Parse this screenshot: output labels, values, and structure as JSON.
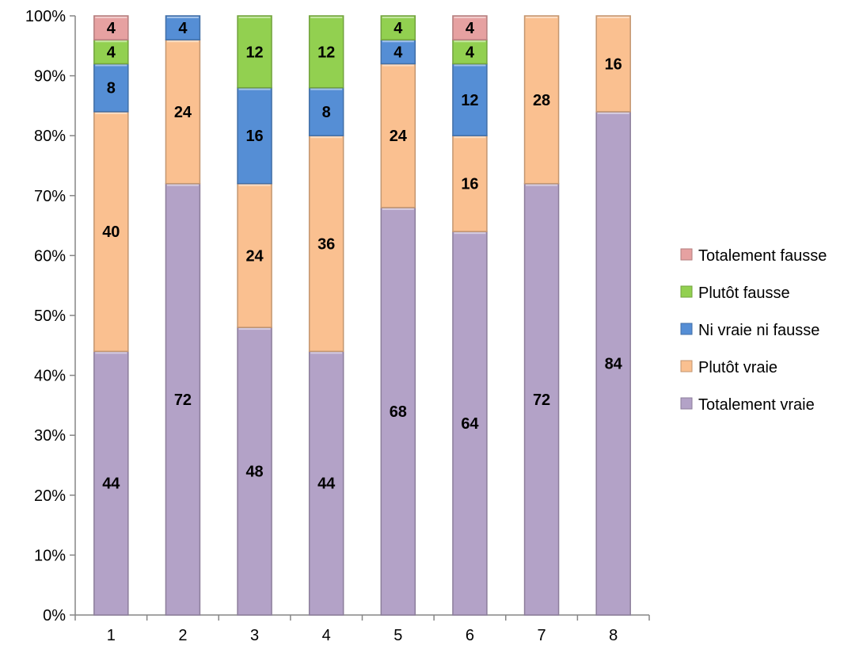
{
  "chart_data": {
    "type": "bar",
    "stacked": true,
    "normalized_percent": true,
    "categories": [
      "1",
      "2",
      "3",
      "4",
      "5",
      "6",
      "7",
      "8"
    ],
    "series": [
      {
        "name": "Totalement vraie",
        "color": "#b3a2c7",
        "values": [
          44,
          72,
          48,
          44,
          68,
          64,
          72,
          84
        ]
      },
      {
        "name": "Plutôt vraie",
        "color": "#fac090",
        "values": [
          40,
          24,
          24,
          36,
          24,
          16,
          28,
          16
        ]
      },
      {
        "name": "Ni vraie ni fausse",
        "color": "#558ed5",
        "values": [
          8,
          4,
          16,
          8,
          4,
          12,
          0,
          0
        ]
      },
      {
        "name": "Plutôt fausse",
        "color": "#92d050",
        "values": [
          4,
          0,
          12,
          12,
          4,
          4,
          0,
          0
        ]
      },
      {
        "name": "Totalement fausse",
        "color": "#e6a1a1",
        "values": [
          4,
          0,
          0,
          0,
          0,
          4,
          0,
          0
        ]
      }
    ],
    "y_ticks": [
      "0%",
      "10%",
      "20%",
      "30%",
      "40%",
      "50%",
      "60%",
      "70%",
      "80%",
      "90%",
      "100%"
    ],
    "ylim": [
      0,
      100
    ],
    "grid": false,
    "legend_position": "right",
    "legend_order": [
      "Totalement fausse",
      "Plutôt fausse",
      "Ni vraie ni fausse",
      "Plutôt vraie",
      "Totalement vraie"
    ]
  }
}
